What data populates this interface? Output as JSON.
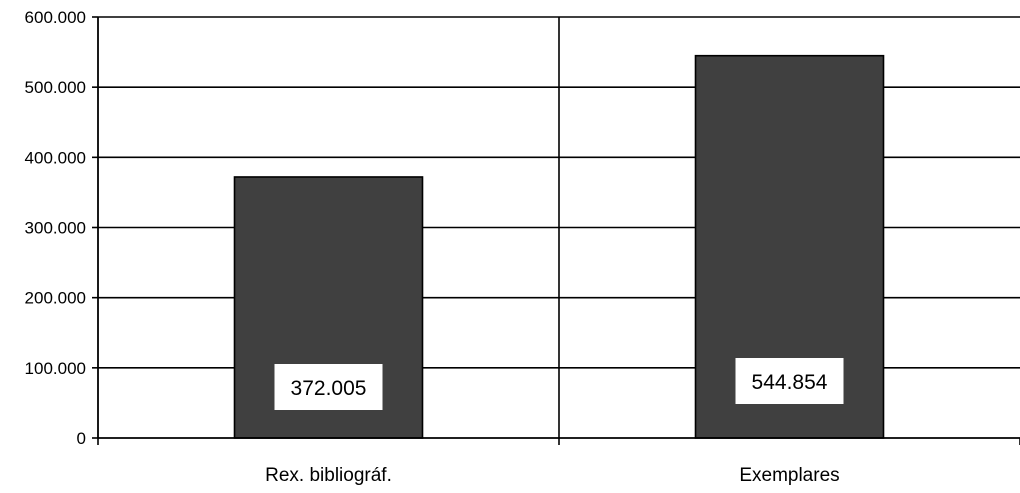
{
  "chart_data": {
    "type": "bar",
    "categories": [
      "Rex. bibliográf.",
      "Exemplares"
    ],
    "values": [
      372005,
      544854
    ],
    "data_labels": [
      "372.005",
      "544.854"
    ],
    "ylim": [
      0,
      600000
    ],
    "y_ticks": [
      0,
      100000,
      200000,
      300000,
      400000,
      500000,
      600000
    ],
    "y_tick_labels": [
      "0",
      "100.000",
      "200.000",
      "300.000",
      "400.000",
      "500.000",
      "600.000"
    ],
    "grid": true,
    "legend": "none",
    "colors": {
      "bar": "#404040",
      "bar_outline": "#000000",
      "gridline": "#000000",
      "axis": "#000000",
      "background": "#ffffff",
      "label_box": "#ffffff"
    }
  }
}
